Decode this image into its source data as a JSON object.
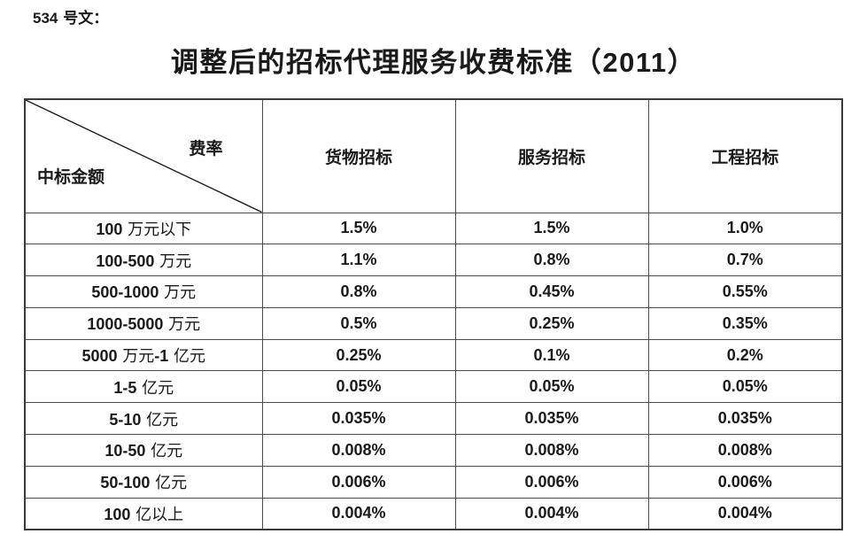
{
  "doc_label": "534 号文：",
  "title": "调整后的招标代理服务收费标准（2011）",
  "table": {
    "corner": {
      "top_right": "费率",
      "bottom_left": "中标金额"
    },
    "columns": [
      "货物招标",
      "服务招标",
      "工程招标"
    ],
    "rows": [
      {
        "amount": "100 万元以下",
        "values": [
          "1.5%",
          "1.5%",
          "1.0%"
        ]
      },
      {
        "amount": "100-500 万元",
        "values": [
          "1.1%",
          "0.8%",
          "0.7%"
        ]
      },
      {
        "amount": "500-1000 万元",
        "values": [
          "0.8%",
          "0.45%",
          "0.55%"
        ]
      },
      {
        "amount": "1000-5000 万元",
        "values": [
          "0.5%",
          "0.25%",
          "0.35%"
        ]
      },
      {
        "amount": "5000 万元-1 亿元",
        "values": [
          "0.25%",
          "0.1%",
          "0.2%"
        ]
      },
      {
        "amount": "1-5 亿元",
        "values": [
          "0.05%",
          "0.05%",
          "0.05%"
        ]
      },
      {
        "amount": "5-10 亿元",
        "values": [
          "0.035%",
          "0.035%",
          "0.035%"
        ]
      },
      {
        "amount": "10-50 亿元",
        "values": [
          "0.008%",
          "0.008%",
          "0.008%"
        ]
      },
      {
        "amount": "50-100 亿元",
        "values": [
          "0.006%",
          "0.006%",
          "0.006%"
        ]
      },
      {
        "amount": "100 亿以上",
        "values": [
          "0.004%",
          "0.004%",
          "0.004%"
        ]
      }
    ],
    "border_color": "#3a3a3a",
    "text_color": "#1a1a1a"
  }
}
